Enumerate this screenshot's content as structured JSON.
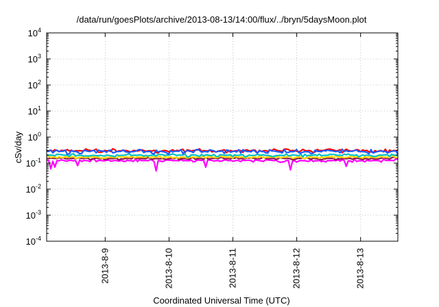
{
  "chart_data": {
    "type": "line",
    "title": "/data/run/goesPlots/archive/2013-08-13/14:00/flux/../bryn/5daysMoon.plot",
    "xlabel": "Coordinated Universal Time (UTC)",
    "ylabel": "cSv/day",
    "yscale": "log",
    "ylim_exp": [
      -4,
      4
    ],
    "xlim": [
      "2013-08-08 02:00",
      "2013-08-13 14:00"
    ],
    "x_ticks": [
      {
        "label": "2013-8-9",
        "date": "2013-08-09 00:00"
      },
      {
        "label": "2013-8-10",
        "date": "2013-08-10 00:00"
      },
      {
        "label": "2013-8-11",
        "date": "2013-08-11 00:00"
      },
      {
        "label": "2013-8-12",
        "date": "2013-08-12 00:00"
      },
      {
        "label": "2013-8-13",
        "date": "2013-08-13 00:00"
      }
    ],
    "y_ticks": [
      {
        "base": "10",
        "exp": "-4",
        "value": 0.0001
      },
      {
        "base": "10",
        "exp": "-3",
        "value": 0.001
      },
      {
        "base": "10",
        "exp": "-2",
        "value": 0.01
      },
      {
        "base": "10",
        "exp": "-1",
        "value": 0.1
      },
      {
        "base": "10",
        "exp": "0",
        "value": 1
      },
      {
        "base": "10",
        "exp": "1",
        "value": 10
      },
      {
        "base": "10",
        "exp": "2",
        "value": 100
      },
      {
        "base": "10",
        "exp": "3",
        "value": 1000
      },
      {
        "base": "10",
        "exp": "4",
        "value": 10000
      }
    ],
    "grid": true,
    "legend": "none",
    "series": [
      {
        "color": "#ff00ff",
        "base": 0.125,
        "amp": 0.12,
        "dips": true
      },
      {
        "color": "#8b1a4a",
        "base": 0.15,
        "amp": 0.1,
        "dips": false
      },
      {
        "color": "#ffd700",
        "base": 0.17,
        "amp": 0.1,
        "dips": false
      },
      {
        "color": "#00c0c0",
        "base": 0.2,
        "amp": 0.12,
        "dips": false
      },
      {
        "color": "#ff0000",
        "base": 0.3,
        "amp": 0.16,
        "dips": false
      },
      {
        "color": "#1e5aff",
        "base": 0.28,
        "amp": 0.18,
        "dips": false
      }
    ]
  }
}
